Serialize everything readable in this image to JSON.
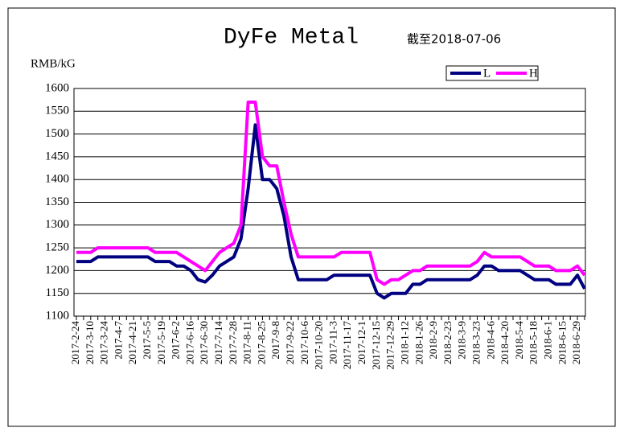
{
  "chart_data": {
    "type": "line",
    "title": "DyFe Metal",
    "subtitle": "截至2018-07-06",
    "y_label": "RMB/kG",
    "categories": [
      "2017-2-24",
      null,
      "2017-3-10",
      null,
      "2017-3-24",
      null,
      "2017-4-7",
      null,
      "2017-4-21",
      null,
      "2017-5-5",
      null,
      "2017-5-19",
      null,
      "2017-6-2",
      null,
      "2017-6-16",
      null,
      "2017-6-30",
      null,
      "2017-7-14",
      null,
      "2017-7-28",
      null,
      "2017-8-11",
      null,
      "2017-8-25",
      null,
      "2017-9-8",
      null,
      "2017-9-22",
      null,
      "2017-10-6",
      null,
      "2017-10-20",
      null,
      "2017-11-3",
      null,
      "2017-11-17",
      null,
      "2017-12-1",
      null,
      "2017-12-15",
      null,
      "2017-12-29",
      null,
      "2018-1-12",
      null,
      "2018-1-26",
      null,
      "2018-2-9",
      null,
      "2018-2-23",
      null,
      "2018-3-9",
      null,
      "2018-3-23",
      null,
      "2018-4-6",
      null,
      "2018-4-20",
      null,
      "2018-5-4",
      null,
      "2018-5-18",
      null,
      "2018-6-1",
      null,
      "2018-6-15",
      null,
      "2018-6-29",
      null
    ],
    "series": [
      {
        "name": "L",
        "color": "#000080",
        "values": [
          1220,
          1220,
          1220,
          1230,
          1230,
          1230,
          1230,
          1230,
          1230,
          1230,
          1230,
          1220,
          1220,
          1220,
          1210,
          1210,
          1200,
          1180,
          1175,
          1190,
          1210,
          1220,
          1230,
          1270,
          1380,
          1520,
          1400,
          1400,
          1380,
          1320,
          1230,
          1180,
          1180,
          1180,
          1180,
          1180,
          1190,
          1190,
          1190,
          1190,
          1190,
          1190,
          1150,
          1140,
          1150,
          1150,
          1150,
          1170,
          1170,
          1180,
          1180,
          1180,
          1180,
          1180,
          1180,
          1180,
          1190,
          1210,
          1210,
          1200,
          1200,
          1200,
          1200,
          1190,
          1180,
          1180,
          1180,
          1170,
          1170,
          1170,
          1190,
          1160
        ]
      },
      {
        "name": "H",
        "color": "#ff00ff",
        "values": [
          1240,
          1240,
          1240,
          1250,
          1250,
          1250,
          1250,
          1250,
          1250,
          1250,
          1250,
          1240,
          1240,
          1240,
          1240,
          1230,
          1220,
          1210,
          1200,
          1220,
          1240,
          1250,
          1260,
          1300,
          1570,
          1570,
          1450,
          1430,
          1430,
          1350,
          1280,
          1230,
          1230,
          1230,
          1230,
          1230,
          1230,
          1240,
          1240,
          1240,
          1240,
          1240,
          1180,
          1170,
          1180,
          1180,
          1190,
          1200,
          1200,
          1210,
          1210,
          1210,
          1210,
          1210,
          1210,
          1210,
          1220,
          1240,
          1230,
          1230,
          1230,
          1230,
          1230,
          1220,
          1210,
          1210,
          1210,
          1200,
          1200,
          1200,
          1210,
          1190
        ]
      }
    ],
    "ylim": [
      1100,
      1600
    ],
    "yticks": [
      1100,
      1150,
      1200,
      1250,
      1300,
      1350,
      1400,
      1450,
      1500,
      1550,
      1600
    ],
    "grid": true,
    "legend": "top-right"
  }
}
